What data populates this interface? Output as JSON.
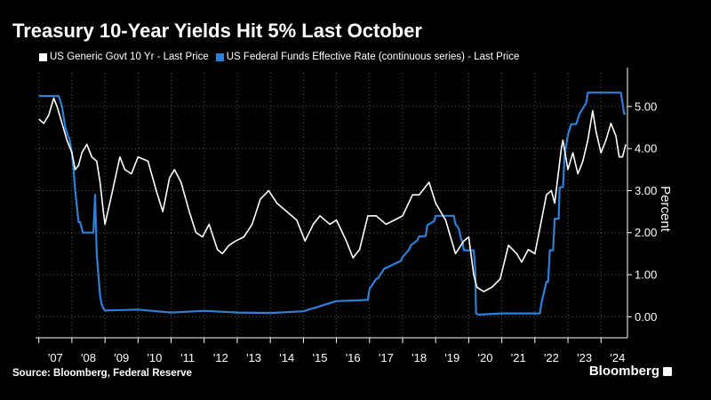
{
  "title": "Treasury 10-Year Yields Hit 5% Last October",
  "source": "Source: Bloomberg, Federal Reserve",
  "brand": "Bloomberg",
  "colors": {
    "background": "#000000",
    "treasury": "#ffffff",
    "fedfunds": "#2f7fd8",
    "grid": "#5a5a5a"
  },
  "chart_data": {
    "type": "line",
    "title": "Treasury 10-Year Yields Hit 5% Last October",
    "xlabel": "",
    "ylabel": "Percent",
    "xlim": [
      2006.9,
      2024.8
    ],
    "ylim": [
      -0.5,
      5.8
    ],
    "x_ticks": [
      2007,
      2008,
      2009,
      2010,
      2011,
      2012,
      2013,
      2014,
      2015,
      2016,
      2017,
      2018,
      2019,
      2020,
      2021,
      2022,
      2023,
      2024
    ],
    "x_tick_labels": [
      "'07",
      "'08",
      "'09",
      "'10",
      "'11",
      "'12",
      "'13",
      "'14",
      "'15",
      "'16",
      "'17",
      "'18",
      "'19",
      "'20",
      "'21",
      "'22",
      "'23",
      "'24"
    ],
    "y_ticks": [
      0,
      1,
      2,
      3,
      4,
      5
    ],
    "y_tick_labels": [
      "0.00",
      "1.00",
      "2.00",
      "3.00",
      "4.00",
      "5.00"
    ],
    "grid": true,
    "legend_position": "top-left",
    "series": [
      {
        "name": "US Generic Govt 10 Yr - Last Price",
        "color": "#ffffff",
        "x": [
          2007.0,
          2007.15,
          2007.3,
          2007.45,
          2007.55,
          2007.7,
          2007.85,
          2008.0,
          2008.1,
          2008.2,
          2008.3,
          2008.45,
          2008.6,
          2008.75,
          2008.85,
          2008.95,
          2009.0,
          2009.2,
          2009.45,
          2009.6,
          2009.8,
          2010.0,
          2010.3,
          2010.55,
          2010.75,
          2010.95,
          2011.1,
          2011.3,
          2011.55,
          2011.75,
          2011.95,
          2012.15,
          2012.4,
          2012.55,
          2012.75,
          2012.95,
          2013.2,
          2013.45,
          2013.7,
          2013.95,
          2014.2,
          2014.5,
          2014.8,
          2015.05,
          2015.3,
          2015.5,
          2015.8,
          2016.0,
          2016.3,
          2016.5,
          2016.7,
          2016.95,
          2017.2,
          2017.5,
          2017.75,
          2018.0,
          2018.3,
          2018.5,
          2018.8,
          2019.0,
          2019.3,
          2019.6,
          2019.85,
          2020.0,
          2020.15,
          2020.25,
          2020.45,
          2020.7,
          2020.95,
          2021.2,
          2021.45,
          2021.6,
          2021.8,
          2022.0,
          2022.2,
          2022.35,
          2022.5,
          2022.6,
          2022.8,
          2022.85,
          2023.0,
          2023.15,
          2023.3,
          2023.45,
          2023.6,
          2023.75,
          2023.85,
          2024.0,
          2024.15,
          2024.3,
          2024.45,
          2024.55,
          2024.65,
          2024.75
        ],
        "y": [
          4.7,
          4.6,
          4.8,
          5.2,
          5.0,
          4.6,
          4.2,
          3.9,
          3.5,
          3.6,
          3.9,
          4.1,
          3.8,
          3.7,
          3.2,
          2.5,
          2.2,
          2.9,
          3.8,
          3.5,
          3.4,
          3.8,
          3.7,
          3.0,
          2.5,
          3.3,
          3.5,
          3.2,
          2.5,
          2.0,
          1.9,
          2.2,
          1.6,
          1.5,
          1.7,
          1.8,
          1.9,
          2.2,
          2.8,
          3.0,
          2.7,
          2.5,
          2.3,
          1.8,
          2.2,
          2.4,
          2.2,
          2.3,
          1.8,
          1.4,
          1.6,
          2.4,
          2.4,
          2.2,
          2.3,
          2.4,
          2.9,
          2.9,
          3.2,
          2.7,
          2.3,
          1.5,
          1.8,
          1.9,
          1.0,
          0.7,
          0.6,
          0.7,
          0.9,
          1.7,
          1.5,
          1.3,
          1.6,
          1.5,
          2.3,
          2.9,
          3.0,
          2.7,
          4.0,
          4.2,
          3.5,
          3.9,
          3.4,
          3.7,
          4.2,
          4.9,
          4.4,
          3.9,
          4.2,
          4.6,
          4.3,
          3.8,
          3.8,
          4.1
        ]
      },
      {
        "name": "US Federal Funds Effective Rate (continuous series) - Last Price",
        "color": "#2f7fd8",
        "x": [
          2007.0,
          2007.6,
          2007.7,
          2007.75,
          2007.8,
          2007.88,
          2007.92,
          2008.0,
          2008.05,
          2008.1,
          2008.2,
          2008.25,
          2008.33,
          2008.4,
          2008.5,
          2008.65,
          2008.7,
          2008.75,
          2008.8,
          2008.85,
          2008.9,
          2008.95,
          2009.0,
          2010.0,
          2011.0,
          2012.0,
          2013.0,
          2014.0,
          2015.0,
          2015.95,
          2016.0,
          2016.95,
          2017.0,
          2017.2,
          2017.25,
          2017.45,
          2017.5,
          2017.95,
          2018.0,
          2018.2,
          2018.25,
          2018.45,
          2018.5,
          2018.7,
          2018.75,
          2018.95,
          2019.0,
          2019.55,
          2019.6,
          2019.7,
          2019.75,
          2019.82,
          2019.85,
          2020.15,
          2020.2,
          2020.22,
          2020.3,
          2021.0,
          2022.0,
          2022.15,
          2022.2,
          2022.35,
          2022.4,
          2022.45,
          2022.55,
          2022.6,
          2022.72,
          2022.75,
          2022.85,
          2022.9,
          2023.0,
          2023.1,
          2023.25,
          2023.35,
          2023.55,
          2023.6,
          2024.6,
          2024.7,
          2024.75
        ],
        "y": [
          5.25,
          5.25,
          5.0,
          4.75,
          4.5,
          4.3,
          4.25,
          3.9,
          3.5,
          3.0,
          2.25,
          2.25,
          2.0,
          2.0,
          2.0,
          2.0,
          2.9,
          1.5,
          1.0,
          0.5,
          0.3,
          0.2,
          0.15,
          0.17,
          0.1,
          0.14,
          0.1,
          0.09,
          0.13,
          0.36,
          0.37,
          0.4,
          0.66,
          0.9,
          0.91,
          1.15,
          1.16,
          1.33,
          1.42,
          1.6,
          1.7,
          1.82,
          1.91,
          1.92,
          2.18,
          2.27,
          2.4,
          2.4,
          2.2,
          2.1,
          1.9,
          1.75,
          1.58,
          1.58,
          1.1,
          0.08,
          0.05,
          0.08,
          0.08,
          0.08,
          0.33,
          0.83,
          0.83,
          1.58,
          1.58,
          2.33,
          2.33,
          3.08,
          3.08,
          3.83,
          4.33,
          4.58,
          4.58,
          4.83,
          5.08,
          5.33,
          5.33,
          4.83,
          4.83
        ]
      }
    ]
  }
}
